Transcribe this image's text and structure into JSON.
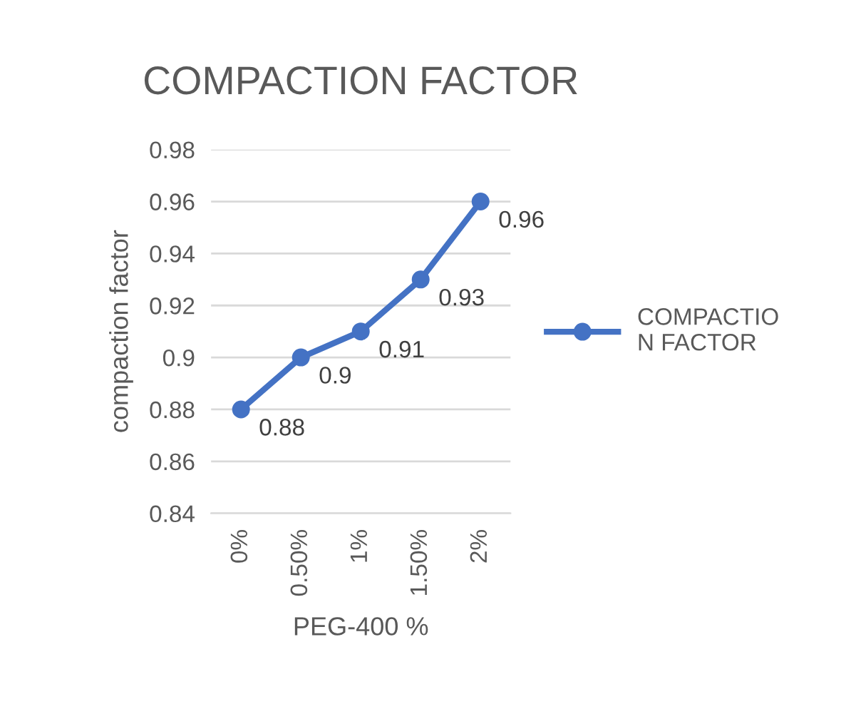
{
  "chart_data": {
    "type": "line",
    "title": "COMPACTION FACTOR",
    "xlabel": "PEG-400 %",
    "ylabel": "compaction factor",
    "categories": [
      "0%",
      "0.50%",
      "1%",
      "1.50%",
      "2%"
    ],
    "series": [
      {
        "name": "COMPACTION FACTOR",
        "color": "#4472c4",
        "values": [
          0.88,
          0.9,
          0.91,
          0.93,
          0.96
        ]
      }
    ],
    "ylim": [
      0.84,
      0.98
    ],
    "yticks": [
      0.84,
      0.86,
      0.88,
      0.9,
      0.92,
      0.94,
      0.96,
      0.98
    ],
    "grid": "y",
    "legend": "right",
    "marker": "circle",
    "line_style": "solid",
    "data_labels": true
  }
}
